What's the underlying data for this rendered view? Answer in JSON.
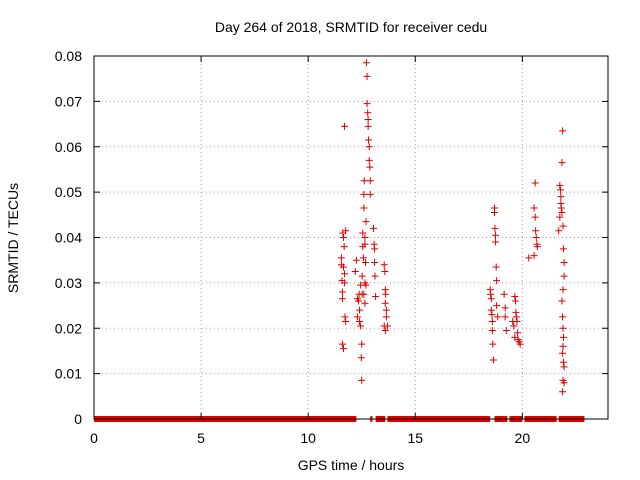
{
  "chart_data": {
    "type": "scatter",
    "title": "Day 264 of 2018, SRMTID for receiver cedu",
    "xlabel": "GPS time / hours",
    "ylabel": "SRMTID / TECUs",
    "xlim": [
      0,
      24
    ],
    "ylim": [
      0,
      0.08
    ],
    "xticks": [
      0,
      5,
      10,
      15,
      20
    ],
    "xtick_labels": [
      "0",
      "5",
      "10",
      "15",
      "20"
    ],
    "yticks": [
      0,
      0.01,
      0.02,
      0.03,
      0.04,
      0.05,
      0.06,
      0.07,
      0.08
    ],
    "ytick_labels": [
      "0",
      "0.01",
      "0.02",
      "0.03",
      "0.04",
      "0.05",
      "0.06",
      "0.07",
      "0.08"
    ],
    "grid": true,
    "marker": "+",
    "color": "#e00000",
    "zero_line_segments": [
      [
        0,
        12.25
      ],
      [
        12.9,
        13.0
      ],
      [
        13.15,
        13.6
      ],
      [
        13.7,
        18.5
      ],
      [
        18.7,
        19.3
      ],
      [
        19.4,
        20.0
      ],
      [
        20.1,
        21.6
      ],
      [
        21.7,
        22.9
      ]
    ],
    "series": [
      {
        "name": "SRMTID",
        "points": [
          [
            11.55,
            0.0355
          ],
          [
            11.55,
            0.034
          ],
          [
            11.58,
            0.0305
          ],
          [
            11.6,
            0.028
          ],
          [
            11.6,
            0.0265
          ],
          [
            11.62,
            0.041
          ],
          [
            11.65,
            0.04
          ],
          [
            11.65,
            0.0335
          ],
          [
            11.68,
            0.038
          ],
          [
            11.7,
            0.0645
          ],
          [
            11.7,
            0.03
          ],
          [
            11.72,
            0.0225
          ],
          [
            11.75,
            0.0415
          ],
          [
            11.75,
            0.0215
          ],
          [
            11.6,
            0.0165
          ],
          [
            11.65,
            0.0155
          ],
          [
            11.7,
            0.032
          ],
          [
            12.2,
            0.0325
          ],
          [
            12.25,
            0.035
          ],
          [
            12.3,
            0.0265
          ],
          [
            12.3,
            0.0225
          ],
          [
            12.35,
            0.026
          ],
          [
            12.38,
            0.0275
          ],
          [
            12.4,
            0.024
          ],
          [
            12.4,
            0.0215
          ],
          [
            12.45,
            0.0295
          ],
          [
            12.45,
            0.0205
          ],
          [
            12.48,
            0.0135
          ],
          [
            12.5,
            0.0165
          ],
          [
            12.5,
            0.0085
          ],
          [
            12.52,
            0.0315
          ],
          [
            12.52,
            0.0275
          ],
          [
            12.55,
            0.041
          ],
          [
            12.55,
            0.038
          ],
          [
            12.58,
            0.0355
          ],
          [
            12.6,
            0.0495
          ],
          [
            12.6,
            0.0465
          ],
          [
            12.62,
            0.0525
          ],
          [
            12.65,
            0.04
          ],
          [
            12.65,
            0.0385
          ],
          [
            12.65,
            0.03
          ],
          [
            12.68,
            0.0345
          ],
          [
            12.7,
            0.0435
          ],
          [
            12.7,
            0.0295
          ],
          [
            12.72,
            0.0785
          ],
          [
            12.75,
            0.0755
          ],
          [
            12.75,
            0.0695
          ],
          [
            12.78,
            0.0675
          ],
          [
            12.8,
            0.066
          ],
          [
            12.8,
            0.0645
          ],
          [
            12.82,
            0.0615
          ],
          [
            12.85,
            0.06
          ],
          [
            12.85,
            0.057
          ],
          [
            12.88,
            0.0555
          ],
          [
            12.9,
            0.0525
          ],
          [
            12.9,
            0.0495
          ],
          [
            12.6,
            0.0275
          ],
          [
            12.65,
            0.0255
          ],
          [
            13.05,
            0.042
          ],
          [
            13.08,
            0.0385
          ],
          [
            13.1,
            0.0375
          ],
          [
            13.1,
            0.0345
          ],
          [
            13.12,
            0.0315
          ],
          [
            13.15,
            0.027
          ],
          [
            13.55,
            0.034
          ],
          [
            13.58,
            0.0325
          ],
          [
            13.6,
            0.0285
          ],
          [
            13.62,
            0.0275
          ],
          [
            13.6,
            0.0255
          ],
          [
            13.65,
            0.024
          ],
          [
            13.65,
            0.0225
          ],
          [
            13.55,
            0.0205
          ],
          [
            13.6,
            0.0195
          ],
          [
            13.7,
            0.0205
          ],
          [
            18.5,
            0.0285
          ],
          [
            18.52,
            0.0275
          ],
          [
            18.55,
            0.0265
          ],
          [
            18.55,
            0.024
          ],
          [
            18.58,
            0.023
          ],
          [
            18.6,
            0.0215
          ],
          [
            18.6,
            0.0195
          ],
          [
            18.62,
            0.0165
          ],
          [
            18.65,
            0.013
          ],
          [
            18.7,
            0.0465
          ],
          [
            18.7,
            0.0455
          ],
          [
            18.72,
            0.042
          ],
          [
            18.75,
            0.0405
          ],
          [
            18.75,
            0.039
          ],
          [
            18.78,
            0.0335
          ],
          [
            18.8,
            0.0305
          ],
          [
            18.8,
            0.025
          ],
          [
            18.85,
            0.0225
          ],
          [
            19.15,
            0.0275
          ],
          [
            19.2,
            0.0245
          ],
          [
            19.2,
            0.0225
          ],
          [
            19.25,
            0.0195
          ],
          [
            19.55,
            0.0215
          ],
          [
            19.6,
            0.0205
          ],
          [
            19.65,
            0.027
          ],
          [
            19.68,
            0.026
          ],
          [
            19.7,
            0.0235
          ],
          [
            19.72,
            0.0225
          ],
          [
            19.75,
            0.0215
          ],
          [
            19.78,
            0.019
          ],
          [
            19.8,
            0.0175
          ],
          [
            19.85,
            0.017
          ],
          [
            19.9,
            0.0165
          ],
          [
            19.65,
            0.018
          ],
          [
            20.3,
            0.0355
          ],
          [
            20.55,
            0.0465
          ],
          [
            20.6,
            0.052
          ],
          [
            20.6,
            0.0445
          ],
          [
            20.62,
            0.0415
          ],
          [
            20.65,
            0.04
          ],
          [
            20.68,
            0.0385
          ],
          [
            20.7,
            0.038
          ],
          [
            20.55,
            0.036
          ],
          [
            21.75,
            0.0515
          ],
          [
            21.78,
            0.0505
          ],
          [
            21.8,
            0.049
          ],
          [
            21.82,
            0.0465
          ],
          [
            21.85,
            0.0565
          ],
          [
            21.88,
            0.0635
          ],
          [
            21.8,
            0.0475
          ],
          [
            21.85,
            0.0455
          ],
          [
            21.9,
            0.0425
          ],
          [
            21.92,
            0.0375
          ],
          [
            21.95,
            0.0345
          ],
          [
            21.95,
            0.0315
          ],
          [
            21.9,
            0.0285
          ],
          [
            21.85,
            0.026
          ],
          [
            21.88,
            0.0225
          ],
          [
            21.9,
            0.02
          ],
          [
            21.92,
            0.018
          ],
          [
            21.9,
            0.016
          ],
          [
            21.88,
            0.0145
          ],
          [
            21.92,
            0.0125
          ],
          [
            21.95,
            0.0115
          ],
          [
            21.9,
            0.0085
          ],
          [
            21.95,
            0.008
          ],
          [
            21.88,
            0.006
          ],
          [
            21.7,
            0.0415
          ],
          [
            21.75,
            0.0445
          ]
        ]
      }
    ]
  }
}
